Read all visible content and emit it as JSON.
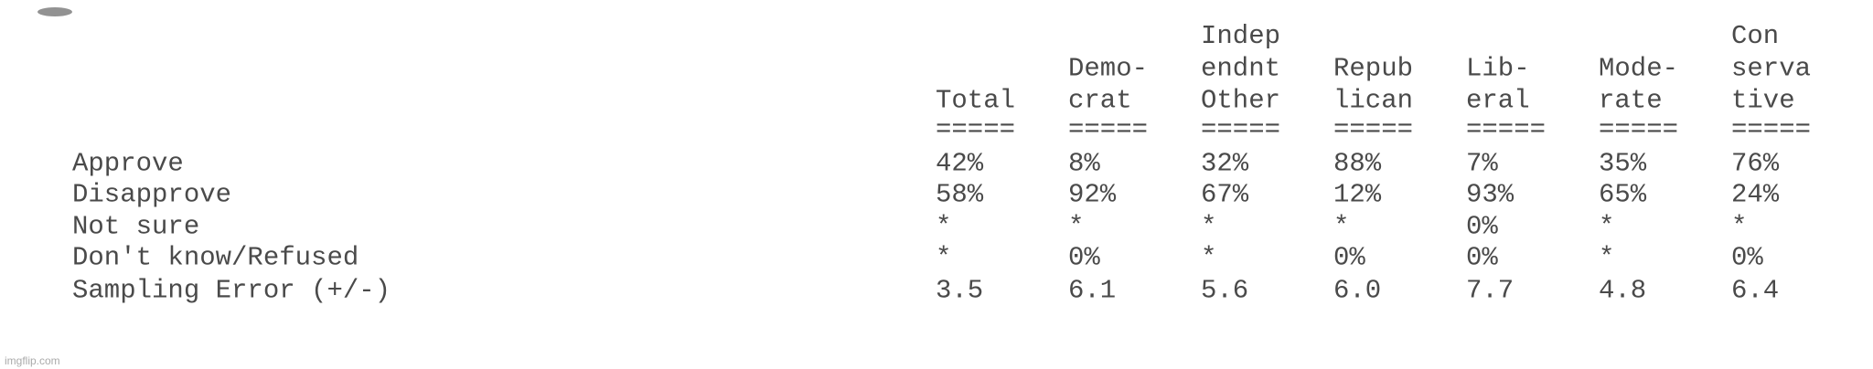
{
  "table": {
    "columns": [
      [
        "Total"
      ],
      [
        "Demo-",
        "crat"
      ],
      [
        "Indep",
        "endnt",
        "Other"
      ],
      [
        "Repub",
        "lican"
      ],
      [
        "Lib-",
        "eral"
      ],
      [
        "Mode-",
        "rate"
      ],
      [
        "Con",
        "serva",
        "tive"
      ]
    ],
    "separators": [
      "=====",
      "=====",
      "=====",
      "=====",
      "=====",
      "=====",
      "====="
    ],
    "rows": [
      {
        "label": "Approve",
        "cells": [
          "42%",
          "8%",
          "32%",
          "88%",
          "7%",
          "35%",
          "76%"
        ]
      },
      {
        "label": "Disapprove",
        "cells": [
          "58%",
          "92%",
          "67%",
          "12%",
          "93%",
          "65%",
          "24%"
        ]
      },
      {
        "label": "Not sure",
        "cells": [
          "*",
          "*",
          "*",
          "*",
          "0%",
          "*",
          "*"
        ]
      },
      {
        "label": "Don't know/Refused",
        "cells": [
          "*",
          "0%",
          "*",
          "0%",
          "0%",
          "*",
          "0%"
        ]
      },
      {
        "label": "Sampling Error (+/-)",
        "cells": [
          "3.5",
          "6.1",
          "5.6",
          "6.0",
          "7.7",
          "4.8",
          "6.4"
        ]
      }
    ]
  },
  "watermark": "imgflip.com"
}
